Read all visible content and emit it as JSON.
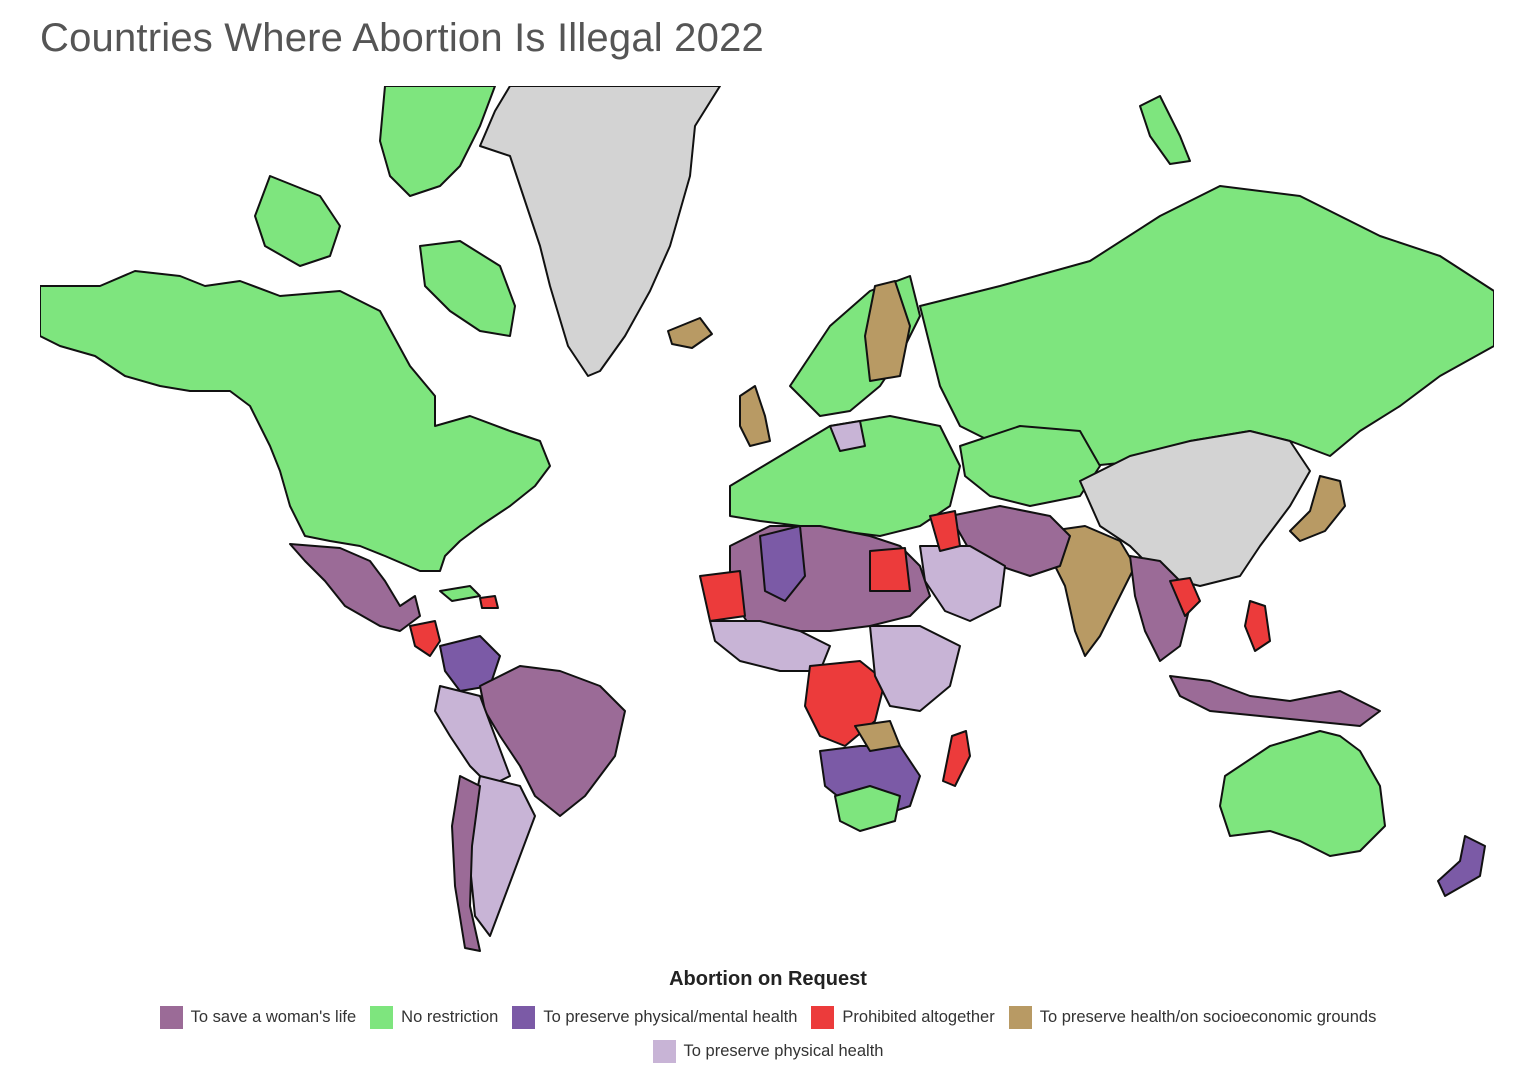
{
  "title": "Countries Where Abortion Is Illegal 2022",
  "legend": {
    "title": "Abortion on Request",
    "items": [
      {
        "label": "To save a woman's life",
        "color": "#9b6b97"
      },
      {
        "label": "No restriction",
        "color": "#7ee57e"
      },
      {
        "label": "To preserve physical/mental health",
        "color": "#7b5aa6"
      },
      {
        "label": "Prohibited altogether",
        "color": "#ec3b3b"
      },
      {
        "label": "To preserve health/on socioeconomic grounds",
        "color": "#b89a64"
      },
      {
        "label": "To preserve physical health",
        "color": "#c8b4d6"
      }
    ]
  },
  "colors": {
    "no_data": "#d3d3d3",
    "border": "#111111"
  }
}
